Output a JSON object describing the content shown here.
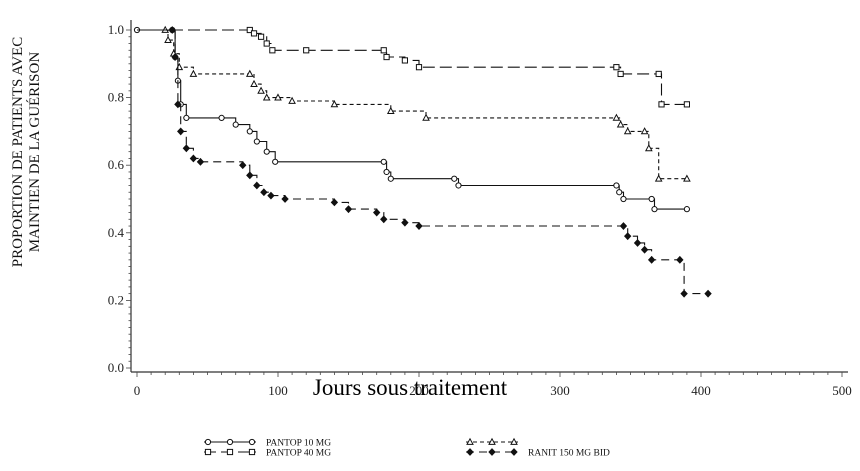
{
  "chart_data": {
    "type": "line",
    "title": "",
    "xlabel": "Jours sous traitement",
    "ylabel_lines": [
      "PROPORTION DE PATIENTS AVEC",
      "MAINTIEN DE LA GUÉRISON"
    ],
    "xlim": [
      0,
      500
    ],
    "ylim": [
      0,
      1.0
    ],
    "x_ticks": [
      0,
      100,
      200,
      300,
      400,
      500
    ],
    "x_tick_labels": [
      "0",
      "100",
      "200",
      "300",
      "400",
      "500"
    ],
    "y_ticks": [
      0,
      0.2,
      0.4,
      0.6,
      0.8,
      1.0
    ],
    "y_tick_labels": [
      "0.0",
      "0.2",
      "0.4",
      "0.6",
      "0.8",
      "1.0"
    ],
    "grid": false,
    "legend_position": "bottom",
    "series": [
      {
        "name": "PANTOP 10 MG",
        "marker": "circle",
        "dash": "solid",
        "points": [
          [
            0,
            1.0
          ],
          [
            25,
            1.0
          ],
          [
            27,
            0.92
          ],
          [
            29,
            0.85
          ],
          [
            31,
            0.78
          ],
          [
            35,
            0.74
          ],
          [
            60,
            0.74
          ],
          [
            70,
            0.72
          ],
          [
            80,
            0.7
          ],
          [
            85,
            0.67
          ],
          [
            92,
            0.64
          ],
          [
            98,
            0.61
          ],
          [
            175,
            0.61
          ],
          [
            177,
            0.58
          ],
          [
            180,
            0.56
          ],
          [
            225,
            0.56
          ],
          [
            228,
            0.54
          ],
          [
            340,
            0.54
          ],
          [
            342,
            0.52
          ],
          [
            345,
            0.5
          ],
          [
            365,
            0.5
          ],
          [
            367,
            0.47
          ],
          [
            390,
            0.47
          ]
        ]
      },
      {
        "name": "PANTOP 40 MG",
        "marker": "square",
        "dash": "long-dash",
        "points": [
          [
            0,
            1.0
          ],
          [
            80,
            1.0
          ],
          [
            83,
            0.99
          ],
          [
            88,
            0.98
          ],
          [
            92,
            0.96
          ],
          [
            96,
            0.94
          ],
          [
            120,
            0.94
          ],
          [
            175,
            0.94
          ],
          [
            177,
            0.92
          ],
          [
            190,
            0.91
          ],
          [
            200,
            0.89
          ],
          [
            340,
            0.89
          ],
          [
            343,
            0.87
          ],
          [
            370,
            0.87
          ],
          [
            372,
            0.78
          ],
          [
            390,
            0.78
          ]
        ]
      },
      {
        "name": "",
        "marker": "triangle",
        "dash": "short-dash",
        "points": [
          [
            0,
            1.0
          ],
          [
            20,
            1.0
          ],
          [
            22,
            0.97
          ],
          [
            26,
            0.93
          ],
          [
            30,
            0.89
          ],
          [
            40,
            0.87
          ],
          [
            80,
            0.87
          ],
          [
            83,
            0.84
          ],
          [
            88,
            0.82
          ],
          [
            92,
            0.8
          ],
          [
            100,
            0.8
          ],
          [
            110,
            0.79
          ],
          [
            140,
            0.78
          ],
          [
            180,
            0.76
          ],
          [
            205,
            0.74
          ],
          [
            340,
            0.74
          ],
          [
            343,
            0.72
          ],
          [
            348,
            0.7
          ],
          [
            360,
            0.7
          ],
          [
            363,
            0.65
          ],
          [
            370,
            0.56
          ],
          [
            390,
            0.56
          ]
        ]
      },
      {
        "name": "RANIT 150 MG BID",
        "marker": "diamond",
        "dash": "dash",
        "points": [
          [
            0,
            1.0
          ],
          [
            25,
            1.0
          ],
          [
            27,
            0.92
          ],
          [
            29,
            0.78
          ],
          [
            31,
            0.7
          ],
          [
            35,
            0.65
          ],
          [
            40,
            0.62
          ],
          [
            45,
            0.61
          ],
          [
            75,
            0.6
          ],
          [
            80,
            0.57
          ],
          [
            85,
            0.54
          ],
          [
            90,
            0.52
          ],
          [
            95,
            0.51
          ],
          [
            105,
            0.5
          ],
          [
            140,
            0.49
          ],
          [
            150,
            0.47
          ],
          [
            170,
            0.46
          ],
          [
            175,
            0.44
          ],
          [
            190,
            0.43
          ],
          [
            200,
            0.42
          ],
          [
            345,
            0.42
          ],
          [
            348,
            0.39
          ],
          [
            355,
            0.37
          ],
          [
            360,
            0.35
          ],
          [
            365,
            0.32
          ],
          [
            385,
            0.32
          ],
          [
            388,
            0.22
          ],
          [
            405,
            0.22
          ]
        ]
      }
    ]
  }
}
